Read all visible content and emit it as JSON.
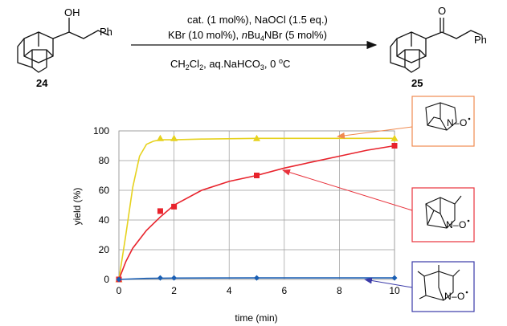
{
  "scheme": {
    "reactant_label": "24",
    "product_label": "25",
    "substituent": "Ph",
    "hydroxyl": "OH",
    "carbonyl_o": "O",
    "conditions_line1": "cat. (1 mol%), NaOCl (1.5 eq.)",
    "conditions_line2_part1": "KBr (10 mol%), ",
    "conditions_line2_italic": "n",
    "conditions_line2_part2": "Bu",
    "conditions_line2_sub": "4",
    "conditions_line2_part3": "NBr (5 mol%)",
    "conditions_line3_part1": "CH",
    "conditions_line3_sub1": "2",
    "conditions_line3_part2": "Cl",
    "conditions_line3_sub2": "2",
    "conditions_line3_part3": ", aq.NaHCO",
    "conditions_line3_sub3": "3",
    "conditions_line3_part4": ", 0 ",
    "conditions_line3_sup": "o",
    "conditions_line3_part5": "C"
  },
  "catalyst_labels": {
    "n": "N",
    "o_dot": "O",
    "bond": "–"
  },
  "colors": {
    "yellow": "#e6d21e",
    "red": "#e8232c",
    "blue": "#1a5fb4",
    "orange_box": "#f08a50",
    "red_box": "#e8323c",
    "blue_box": "#3a3aa8"
  },
  "chart_data": {
    "type": "scatter",
    "title": "",
    "xlabel": "time (min)",
    "ylabel": "yield (%)",
    "xlim": [
      0,
      10
    ],
    "ylim": [
      0,
      100
    ],
    "xticks": [
      "0",
      "2",
      "4",
      "6",
      "8",
      "10"
    ],
    "yticks": [
      "0",
      "20",
      "40",
      "60",
      "80",
      "100"
    ],
    "grid": true,
    "series": [
      {
        "color": "#e6d21e",
        "marker": "triangle",
        "points": [
          [
            0,
            0
          ],
          [
            1.5,
            95
          ],
          [
            2,
            95
          ],
          [
            5,
            95
          ],
          [
            10,
            95
          ]
        ]
      },
      {
        "color": "#e8232c",
        "marker": "square",
        "points": [
          [
            0,
            0
          ],
          [
            1.5,
            46
          ],
          [
            2,
            49
          ],
          [
            5,
            70
          ],
          [
            10,
            90
          ]
        ]
      },
      {
        "color": "#1a5fb4",
        "marker": "diamond",
        "points": [
          [
            0,
            0
          ],
          [
            1.5,
            1
          ],
          [
            2,
            1
          ],
          [
            5,
            1
          ],
          [
            10,
            1
          ]
        ]
      }
    ],
    "fit_curves": [
      {
        "color": "#e6d21e",
        "points": [
          [
            0,
            0
          ],
          [
            0.25,
            30
          ],
          [
            0.5,
            62
          ],
          [
            0.75,
            83
          ],
          [
            1,
            91
          ],
          [
            1.25,
            93
          ],
          [
            1.5,
            94
          ],
          [
            2,
            94
          ],
          [
            3,
            94.5
          ],
          [
            5,
            95
          ],
          [
            10,
            95
          ]
        ]
      },
      {
        "color": "#e8232c",
        "points": [
          [
            0,
            0
          ],
          [
            0.25,
            12
          ],
          [
            0.5,
            21
          ],
          [
            1,
            33
          ],
          [
            1.5,
            42
          ],
          [
            2,
            50
          ],
          [
            3,
            60
          ],
          [
            4,
            66
          ],
          [
            5,
            70
          ],
          [
            6,
            75
          ],
          [
            7,
            79
          ],
          [
            8,
            83
          ],
          [
            9,
            87
          ],
          [
            10,
            90
          ]
        ]
      },
      {
        "color": "#1a5fb4",
        "points": [
          [
            0,
            0
          ],
          [
            1,
            0.7
          ],
          [
            2,
            0.9
          ],
          [
            5,
            1
          ],
          [
            10,
            1
          ]
        ]
      }
    ]
  }
}
